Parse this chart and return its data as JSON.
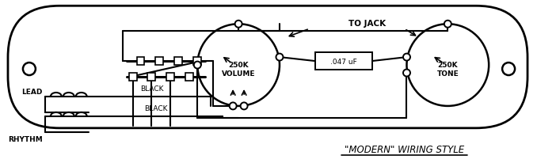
{
  "bg_color": "#ffffff",
  "line_color": "#000000",
  "title": "\"MODERN\" WIRING STYLE",
  "to_jack_label": "TO JACK",
  "volume_label": "250K\nVOLUME",
  "tone_label": "250K\nTONE",
  "cap_label": ".047 uF",
  "lead_label": "LEAD",
  "rhythm_label": "RHYTHM",
  "black_label": "BLACK"
}
